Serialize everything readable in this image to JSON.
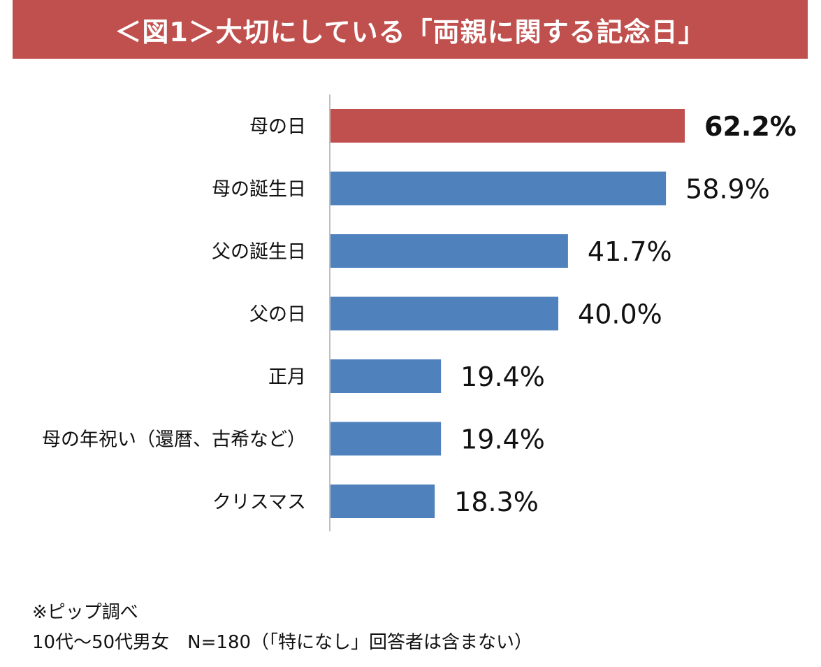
{
  "title": "＜図1＞大切にしている「両親に関する記念日」",
  "colors": {
    "banner": "#c0504d",
    "highlight": "#c0504d",
    "bar": "#4f81bd",
    "axis": "#bfbfbf"
  },
  "chart_data": {
    "type": "bar",
    "orientation": "horizontal",
    "title": "",
    "categories": [
      "母の日",
      "母の誕生日",
      "父の誕生日",
      "父の日",
      "正月",
      "母の年祝い（還暦、古希など）",
      "クリスマス"
    ],
    "values": [
      62.2,
      58.9,
      41.7,
      40.0,
      19.4,
      19.4,
      18.3
    ],
    "value_labels": [
      "62.2%",
      "58.9%",
      "41.7%",
      "40.0%",
      "19.4%",
      "19.4%",
      "18.3%"
    ],
    "unit": "%",
    "highlight_index": 0,
    "xlim": [
      0,
      70
    ],
    "grid": false,
    "legend": "none"
  },
  "footnotes": {
    "source": "※ピップ調べ",
    "sample": "10代～50代男女　N=180（「特になし」回答者は含まない）"
  }
}
